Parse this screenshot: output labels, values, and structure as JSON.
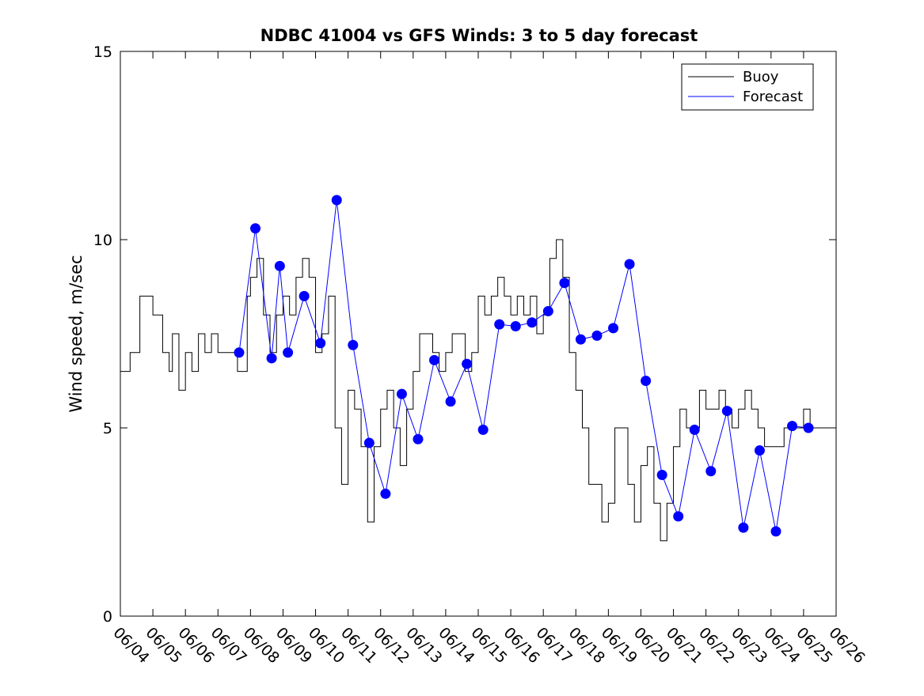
{
  "chart_data": {
    "type": "line",
    "title": "NDBC 41004 vs GFS Winds: 3 to 5 day forecast",
    "xlabel": "",
    "ylabel": "Wind speed, m/sec",
    "x_range": [
      "06/04",
      "06/26"
    ],
    "ylim": [
      0,
      15
    ],
    "yticks": [
      0,
      5,
      10,
      15
    ],
    "xticks": [
      "06/04",
      "06/05",
      "06/06",
      "06/07",
      "06/08",
      "06/09",
      "06/10",
      "06/11",
      "06/12",
      "06/13",
      "06/14",
      "06/15",
      "06/16",
      "06/17",
      "06/18",
      "06/19",
      "06/20",
      "06/21",
      "06/22",
      "06/23",
      "06/24",
      "06/25",
      "06/26"
    ],
    "grid": false,
    "legend_position": "top-right",
    "legend": [
      {
        "label": "Buoy",
        "color": "#000000"
      },
      {
        "label": "Forecast",
        "color": "#0000ff"
      }
    ],
    "series": [
      {
        "name": "Buoy",
        "color": "#000000",
        "style": "step",
        "x_day": [
          0.0,
          0.3,
          0.6,
          1.0,
          1.2,
          1.3,
          1.5,
          1.6,
          1.8,
          2.0,
          2.2,
          2.4,
          2.6,
          2.8,
          3.0,
          3.3,
          3.6,
          3.9,
          4.0,
          4.2,
          4.4,
          4.6,
          4.8,
          5.0,
          5.2,
          5.4,
          5.6,
          5.8,
          6.0,
          6.2,
          6.4,
          6.6,
          6.8,
          7.0,
          7.2,
          7.4,
          7.6,
          7.8,
          8.0,
          8.2,
          8.4,
          8.6,
          8.8,
          9.0,
          9.2,
          9.4,
          9.6,
          9.8,
          10.0,
          10.2,
          10.4,
          10.6,
          10.8,
          11.0,
          11.2,
          11.4,
          11.6,
          11.8,
          12.0,
          12.2,
          12.4,
          12.6,
          12.8,
          13.0,
          13.2,
          13.4,
          13.6,
          13.8,
          14.0,
          14.2,
          14.4,
          14.6,
          14.8,
          15.0,
          15.2,
          15.4,
          15.6,
          15.8,
          16.0,
          16.2,
          16.4,
          16.6,
          16.8,
          17.0,
          17.2,
          17.4,
          17.6,
          17.8,
          18.0,
          18.2,
          18.4,
          18.6,
          18.8,
          19.0,
          19.2,
          19.4,
          19.6,
          19.8,
          20.0,
          20.2,
          20.4,
          20.6,
          20.8,
          21.0,
          21.2,
          21.4,
          21.6,
          21.8,
          22.0
        ],
        "values": [
          6.5,
          7.0,
          8.5,
          8.0,
          8.0,
          7.0,
          6.5,
          7.5,
          6.0,
          7.0,
          6.5,
          7.5,
          7.0,
          7.5,
          7.0,
          7.0,
          6.5,
          8.5,
          9.0,
          9.5,
          8.0,
          7.0,
          8.0,
          8.5,
          8.0,
          9.0,
          9.5,
          9.0,
          7.0,
          7.5,
          8.5,
          5.0,
          3.5,
          6.0,
          5.5,
          4.5,
          2.5,
          4.5,
          5.5,
          6.0,
          5.0,
          4.0,
          5.5,
          6.5,
          7.5,
          7.5,
          7.0,
          6.5,
          7.0,
          7.5,
          7.5,
          6.5,
          7.0,
          8.5,
          8.0,
          8.5,
          9.0,
          8.5,
          8.0,
          8.5,
          8.0,
          8.5,
          7.5,
          8.0,
          9.5,
          10.0,
          9.0,
          7.0,
          6.0,
          5.0,
          3.5,
          3.5,
          2.5,
          3.0,
          5.0,
          5.0,
          3.5,
          2.5,
          4.0,
          4.5,
          3.0,
          2.0,
          3.0,
          4.5,
          5.5,
          5.0,
          5.0,
          6.0,
          5.5,
          5.5,
          6.0,
          5.5,
          5.0,
          5.5,
          6.0,
          5.5,
          5.0,
          4.5,
          4.5,
          4.5,
          5.0,
          5.0,
          5.0,
          5.5,
          5.0,
          5.0,
          5.0,
          5.0,
          5.0
        ]
      },
      {
        "name": "Forecast",
        "color": "#0000ff",
        "style": "markers",
        "x_day": [
          3.65,
          4.15,
          4.65,
          4.9,
          5.15,
          5.65,
          6.15,
          6.65,
          7.15,
          7.65,
          8.15,
          8.65,
          9.15,
          9.65,
          10.15,
          10.65,
          11.15,
          11.65,
          12.15,
          12.65,
          13.15,
          13.65,
          14.15,
          14.65,
          15.15,
          15.65,
          16.15,
          16.65,
          17.15,
          17.65,
          18.15,
          18.65,
          19.15,
          19.65,
          20.15,
          20.65,
          21.15
        ],
        "values": [
          7.0,
          10.3,
          6.85,
          9.3,
          7.0,
          8.5,
          7.25,
          11.05,
          7.2,
          4.6,
          3.25,
          5.9,
          4.7,
          6.8,
          5.7,
          6.7,
          4.95,
          7.75,
          7.7,
          7.8,
          8.1,
          8.85,
          7.35,
          7.45,
          7.65,
          9.35,
          6.25,
          3.75,
          2.65,
          4.95,
          3.85,
          5.45,
          2.35,
          4.4,
          2.25,
          5.05,
          5.0
        ]
      }
    ]
  }
}
